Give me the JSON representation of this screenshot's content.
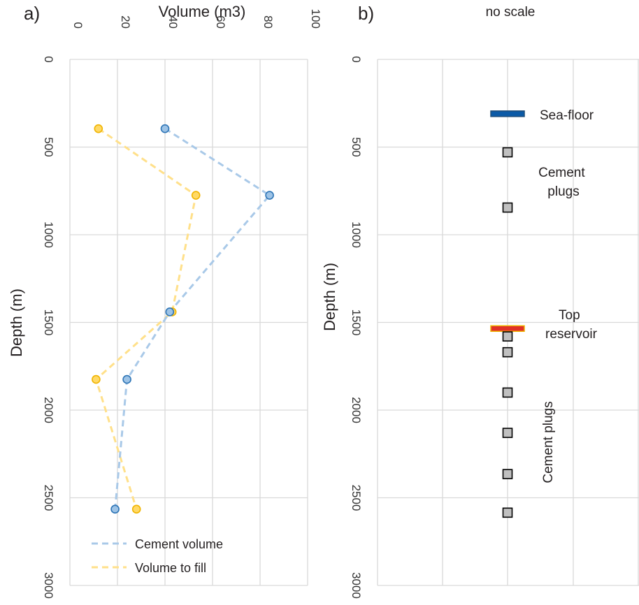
{
  "figure": {
    "panel_a_label": "a)",
    "panel_b_label": "b)",
    "panel_b_note": "no scale"
  },
  "chart_data": [
    {
      "type": "line",
      "panel": "a)",
      "title": "",
      "xlabel": "Volume (m3)",
      "ylabel": "Depth (m)",
      "xlim": [
        0,
        100
      ],
      "ylim": [
        3000,
        0
      ],
      "x_ticks": [
        "0",
        "20",
        "40",
        "60",
        "80",
        "100"
      ],
      "y_ticks": [
        "0",
        "500",
        "1000",
        "1500",
        "2000",
        "2500",
        "3000"
      ],
      "grid": true,
      "legend_position": "bottom-left",
      "series": [
        {
          "name": "Cement volume",
          "color": "#a9c9e8",
          "marker_fill": "#9dc3e6",
          "marker_edge": "#2e75b6",
          "points": [
            {
              "volume": 40,
              "depth": 395
            },
            {
              "volume": 84,
              "depth": 775
            },
            {
              "volume": 42,
              "depth": 1440
            },
            {
              "volume": 24,
              "depth": 1825
            },
            {
              "volume": 19,
              "depth": 2565
            }
          ]
        },
        {
          "name": "Volume to fill",
          "color": "#ffe08a",
          "marker_fill": "#ffd966",
          "marker_edge": "#f0b400",
          "points": [
            {
              "volume": 12,
              "depth": 395
            },
            {
              "volume": 53,
              "depth": 775
            },
            {
              "volume": 43,
              "depth": 1440
            },
            {
              "volume": 11,
              "depth": 1825
            },
            {
              "volume": 28,
              "depth": 2565
            }
          ]
        }
      ]
    },
    {
      "type": "scatter",
      "panel": "b)",
      "title": "",
      "xlabel": "",
      "ylabel": "Depth (m)",
      "ylim": [
        3000,
        0
      ],
      "y_ticks": [
        "0",
        "500",
        "1000",
        "1500",
        "2000",
        "2500",
        "3000"
      ],
      "grid": true,
      "markers": [
        {
          "label": "Sea-floor",
          "depth": 310,
          "color": "#0b5aa7",
          "edge": "#1f4e79"
        },
        {
          "label": "Top reservoir",
          "depth": 1535,
          "color": "#e03127",
          "edge": "#f0b400"
        }
      ],
      "plug_depths": [
        530,
        845,
        1580,
        1670,
        1900,
        2130,
        2365,
        2585
      ],
      "plug_fill": "#c0c0c0",
      "plug_edge": "#000000",
      "annotations": [
        {
          "lines": [
            "Cement",
            "plugs"
          ]
        },
        {
          "lines": [
            "Top",
            "reservoir"
          ]
        },
        {
          "lines": [
            "Sea-floor"
          ]
        },
        {
          "lines": [
            "Cement plugs"
          ],
          "rotation": "vertical"
        }
      ]
    }
  ]
}
